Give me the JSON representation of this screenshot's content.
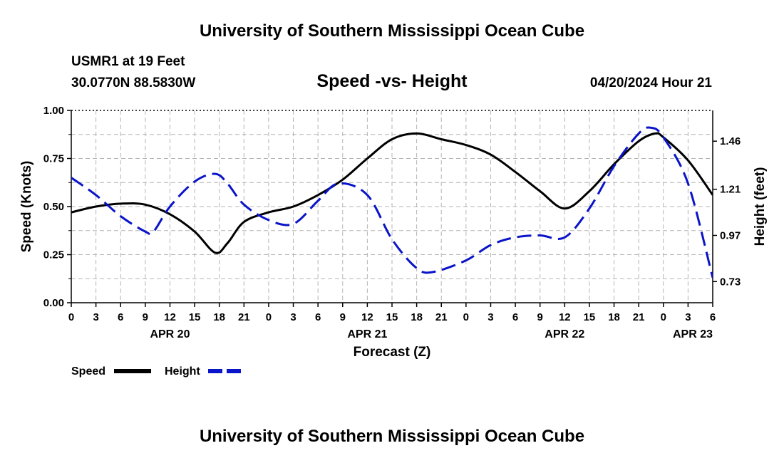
{
  "header": {
    "title": "University of Southern Mississippi Ocean Cube",
    "station": "USMR1 at 19 Feet",
    "coords": "30.0770N  88.5830W",
    "subtitle": "Speed -vs- Height",
    "date": "04/20/2024 Hour 21",
    "footer_title": "University of Southern Mississippi Ocean Cube"
  },
  "chart_data": {
    "type": "line",
    "title": "Speed -vs- Height",
    "xlabel": "Forecast (Z)",
    "ylabel": "Speed (Knots)",
    "y2label": "Height (feet)",
    "xlim": [
      0,
      78
    ],
    "ylim": [
      0,
      1
    ],
    "y2lim": [
      0.62,
      1.62
    ],
    "x_ticks": [
      {
        "x": 0,
        "label": "0"
      },
      {
        "x": 3,
        "label": "3"
      },
      {
        "x": 6,
        "label": "6"
      },
      {
        "x": 9,
        "label": "9"
      },
      {
        "x": 12,
        "label": "12"
      },
      {
        "x": 15,
        "label": "15"
      },
      {
        "x": 18,
        "label": "18"
      },
      {
        "x": 21,
        "label": "21"
      },
      {
        "x": 24,
        "label": "0"
      },
      {
        "x": 27,
        "label": "3"
      },
      {
        "x": 30,
        "label": "6"
      },
      {
        "x": 33,
        "label": "9"
      },
      {
        "x": 36,
        "label": "12"
      },
      {
        "x": 39,
        "label": "15"
      },
      {
        "x": 42,
        "label": "18"
      },
      {
        "x": 45,
        "label": "21"
      },
      {
        "x": 48,
        "label": "0"
      },
      {
        "x": 51,
        "label": "3"
      },
      {
        "x": 54,
        "label": "6"
      },
      {
        "x": 57,
        "label": "9"
      },
      {
        "x": 60,
        "label": "12"
      },
      {
        "x": 63,
        "label": "15"
      },
      {
        "x": 66,
        "label": "18"
      },
      {
        "x": 69,
        "label": "21"
      },
      {
        "x": 72,
        "label": "0"
      },
      {
        "x": 75,
        "label": "3"
      },
      {
        "x": 78,
        "label": "6"
      }
    ],
    "date_labels": [
      {
        "x": 12,
        "label": "APR 20"
      },
      {
        "x": 36,
        "label": "APR 21"
      },
      {
        "x": 60,
        "label": "APR 22"
      },
      {
        "x": 78,
        "label": "APR 23"
      }
    ],
    "y_ticks": [
      "0.00",
      "0.25",
      "0.50",
      "0.75",
      "1.00"
    ],
    "y2_ticks": [
      "0.73",
      "0.97",
      "1.21",
      "1.46"
    ],
    "legend": [
      "Speed",
      "Height"
    ],
    "series": [
      {
        "name": "Speed",
        "axis": "left",
        "color": "#000000",
        "style": "solid",
        "points": [
          [
            0,
            0.47
          ],
          [
            3,
            0.5
          ],
          [
            6,
            0.515
          ],
          [
            9,
            0.51
          ],
          [
            12,
            0.46
          ],
          [
            15,
            0.37
          ],
          [
            17.5,
            0.26
          ],
          [
            19,
            0.31
          ],
          [
            21,
            0.42
          ],
          [
            24,
            0.47
          ],
          [
            27,
            0.5
          ],
          [
            30,
            0.56
          ],
          [
            33,
            0.64
          ],
          [
            36,
            0.75
          ],
          [
            39,
            0.85
          ],
          [
            42,
            0.88
          ],
          [
            45,
            0.85
          ],
          [
            48,
            0.82
          ],
          [
            51,
            0.77
          ],
          [
            54,
            0.68
          ],
          [
            57,
            0.58
          ],
          [
            60,
            0.49
          ],
          [
            63,
            0.58
          ],
          [
            66,
            0.72
          ],
          [
            69,
            0.84
          ],
          [
            71,
            0.88
          ],
          [
            72,
            0.86
          ],
          [
            75,
            0.74
          ],
          [
            78,
            0.56
          ]
        ]
      },
      {
        "name": "Height",
        "axis": "right",
        "color": "#0a14c8",
        "style": "dashed",
        "points": [
          [
            0,
            1.27
          ],
          [
            3,
            1.18
          ],
          [
            6,
            1.07
          ],
          [
            9,
            0.99
          ],
          [
            10,
            0.99
          ],
          [
            12,
            1.12
          ],
          [
            15,
            1.25
          ],
          [
            17.5,
            1.29
          ],
          [
            19,
            1.24
          ],
          [
            21,
            1.13
          ],
          [
            24,
            1.05
          ],
          [
            27,
            1.03
          ],
          [
            30,
            1.15
          ],
          [
            32.5,
            1.24
          ],
          [
            36,
            1.18
          ],
          [
            39,
            0.95
          ],
          [
            42,
            0.8
          ],
          [
            44,
            0.78
          ],
          [
            48,
            0.84
          ],
          [
            51,
            0.92
          ],
          [
            54,
            0.96
          ],
          [
            57,
            0.97
          ],
          [
            60,
            0.96
          ],
          [
            63,
            1.11
          ],
          [
            66,
            1.33
          ],
          [
            69,
            1.5
          ],
          [
            70.5,
            1.53
          ],
          [
            72,
            1.48
          ],
          [
            75,
            1.24
          ],
          [
            78,
            0.75
          ]
        ]
      }
    ]
  }
}
